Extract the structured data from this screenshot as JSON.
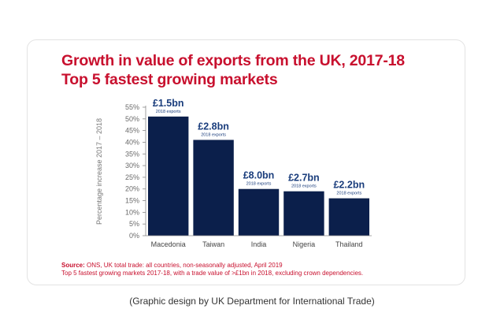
{
  "colors": {
    "title": "#c8102e",
    "bar": "#0b1f4b",
    "label": "#1a3d7c",
    "axis": "#888888"
  },
  "chart_data": {
    "type": "bar",
    "title_line1": "Growth in value of exports from the UK, 2017-18",
    "title_line2": "Top 5 fastest growing markets",
    "ylabel": "Percentage increase 2017 – 2018",
    "xlabel": "",
    "ylim": [
      0,
      55
    ],
    "yticks": [
      0,
      5,
      10,
      15,
      20,
      25,
      30,
      35,
      40,
      45,
      50,
      55
    ],
    "ytick_labels": [
      "0%",
      "5%",
      "10%",
      "15%",
      "20%",
      "25%",
      "30%",
      "35%",
      "40%",
      "45%",
      "50%",
      "55%"
    ],
    "categories": [
      "Macedonia",
      "Taiwan",
      "India",
      "Nigeria",
      "Thailand"
    ],
    "values": [
      51,
      41,
      20,
      19,
      16
    ],
    "data_labels": [
      "£1.5bn",
      "£2.8bn",
      "£8.0bn",
      "£2.7bn",
      "£2.2bn"
    ],
    "data_sublabel": "2018 exports",
    "grid": false,
    "legend": "none"
  },
  "source": {
    "label": "Source:",
    "line1": " ONS, UK total trade: all countries, non-seasonally adjusted, April 2019",
    "line2": "Top 5 fastest growing markets 2017-18, with a trade value of >£1bn in 2018, excluding crown dependencies."
  },
  "caption": "(Graphic design by UK Department for International Trade)"
}
